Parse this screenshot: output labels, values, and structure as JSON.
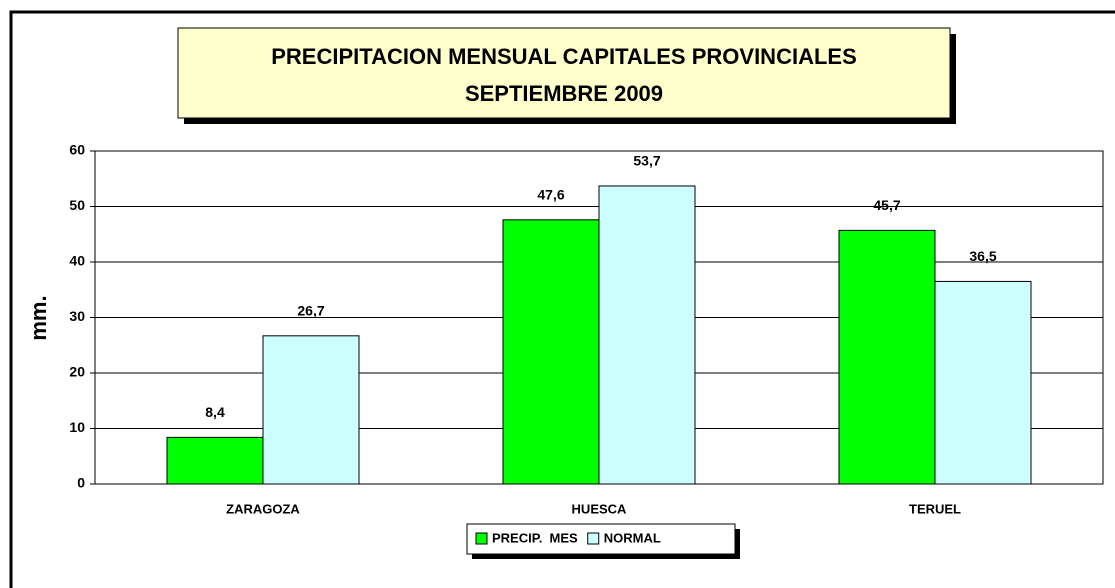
{
  "chart_data": {
    "type": "bar",
    "title": "PRECIPITACION MENSUAL CAPITALES PROVINCIALES",
    "subtitle": "SEPTIEMBRE 2009",
    "y_label": "mm.",
    "categories": [
      "ZARAGOZA",
      "HUESCA",
      "TERUEL"
    ],
    "series": [
      {
        "name": "PRECIP.  MES",
        "color": "#00ff00",
        "values": [
          8.4,
          47.6,
          45.7
        ],
        "value_labels": [
          "8,4",
          "47,6",
          "45,7"
        ]
      },
      {
        "name": "NORMAL",
        "color": "#ccffff",
        "values": [
          26.7,
          53.7,
          36.5
        ],
        "value_labels": [
          "26,7",
          "53,7",
          "36,5"
        ]
      }
    ],
    "ylim": [
      0,
      60
    ],
    "yticks": [
      0,
      10,
      20,
      30,
      40,
      50,
      60
    ],
    "grid": true,
    "legend": "bottom"
  }
}
